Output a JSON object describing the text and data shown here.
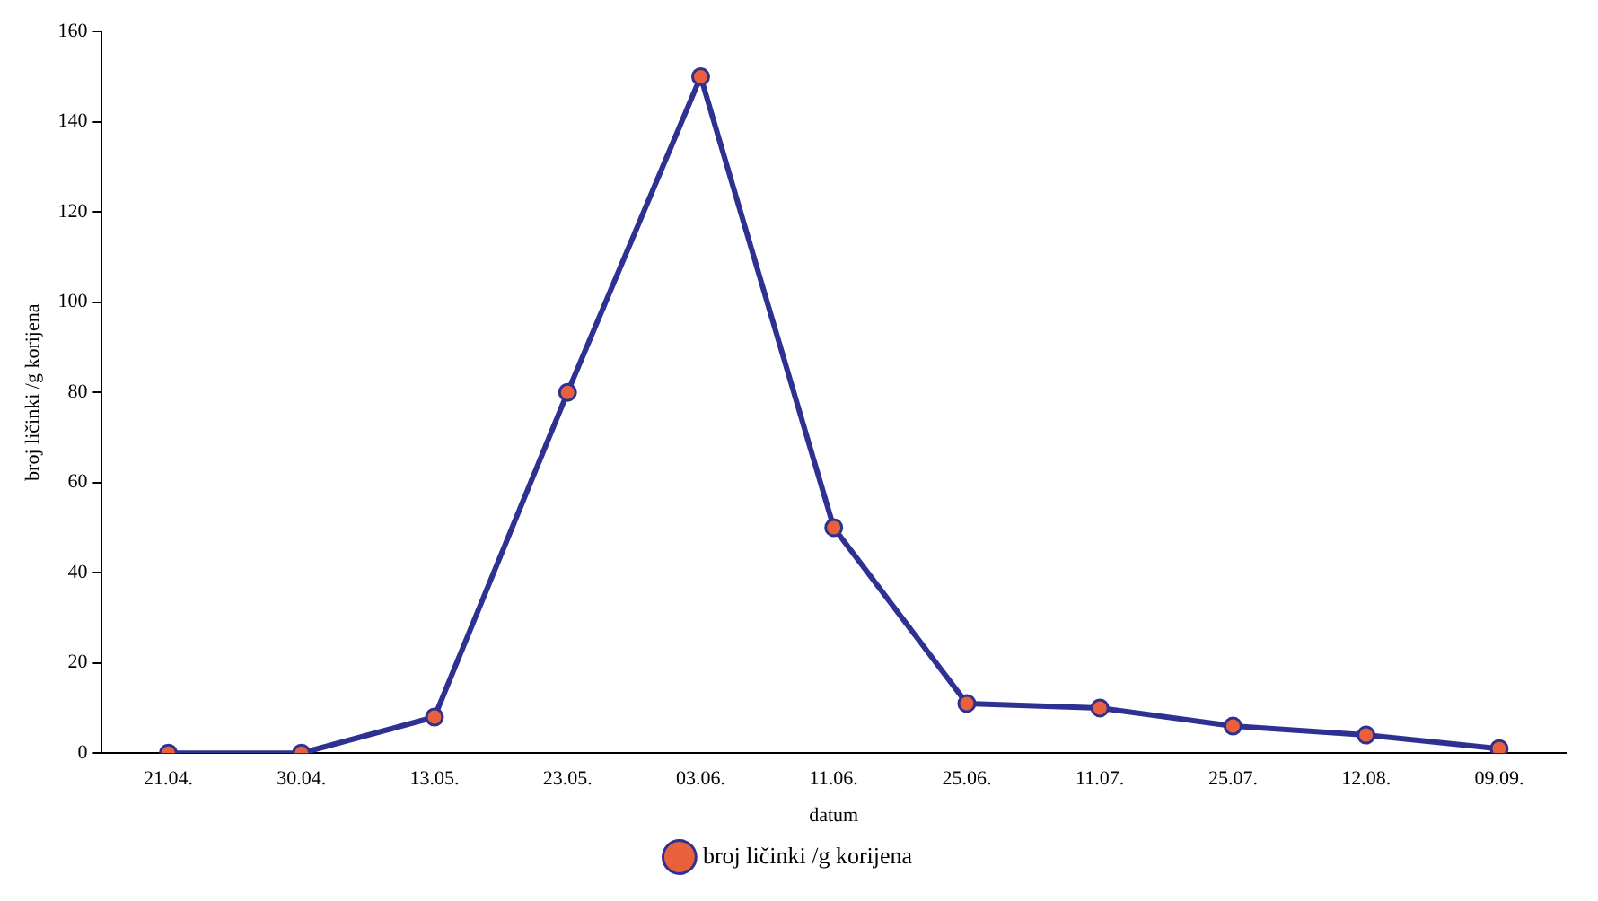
{
  "chart_data": {
    "type": "line",
    "xlabel": "datum",
    "ylabel": "broj ličinki /g korijena",
    "categories": [
      "21.04.",
      "30.04.",
      "13.05.",
      "23.05.",
      "03.06.",
      "11.06.",
      "25.06.",
      "11.07.",
      "25.07.",
      "12.08.",
      "09.09."
    ],
    "series": [
      {
        "name": "broj ličinki /g korijena",
        "color": "#2e3192",
        "values": [
          0,
          0,
          8,
          80,
          150,
          50,
          11,
          10,
          6,
          4,
          1
        ]
      }
    ],
    "ylim": [
      0,
      160
    ],
    "yticks": [
      0,
      20,
      40,
      60,
      80,
      100,
      120,
      140,
      160
    ],
    "grid": false,
    "legend": "bottom",
    "marker": "circle",
    "line_style": "solid"
  }
}
